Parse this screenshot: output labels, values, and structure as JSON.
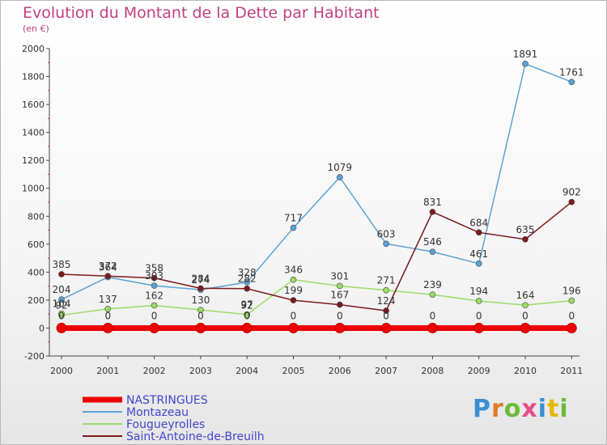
{
  "header": {
    "title": "Evolution du Montant de la Dette par Habitant",
    "subtitle": "(en €)"
  },
  "logo": {
    "text": "Proxiti"
  },
  "chart_data": {
    "type": "line",
    "title": "Evolution du Montant de la Dette par Habitant",
    "subtitle": "(en €)",
    "x": [
      "2000",
      "2001",
      "2002",
      "2003",
      "2004",
      "2005",
      "2006",
      "2007",
      "2008",
      "2009",
      "2010",
      "2011"
    ],
    "ylim": [
      -200,
      2000
    ],
    "yticks": [
      -200,
      0,
      200,
      400,
      600,
      800,
      1000,
      1200,
      1400,
      1600,
      1800,
      2000
    ],
    "grid": false,
    "legend_position": "bottom-left",
    "series": [
      {
        "name": "NASTRINGUES",
        "color": "#ee0000",
        "values": [
          0,
          0,
          0,
          0,
          0,
          0,
          0,
          0,
          0,
          0,
          0,
          0
        ],
        "labels": []
      },
      {
        "name": "Montazeau",
        "color": "#5ba3d6",
        "values": [
          204,
          364,
          303,
          274,
          328,
          717,
          1079,
          603,
          546,
          461,
          1891,
          1761
        ],
        "labels": [
          "204",
          "364",
          "303",
          "274",
          "328",
          "717",
          "1079",
          "603",
          "546",
          "461",
          "1891",
          "1761"
        ]
      },
      {
        "name": "Fougueyrolles",
        "color": "#99dd66",
        "values": [
          92,
          137,
          162,
          130,
          97,
          346,
          301,
          271,
          239,
          194,
          164,
          196
        ],
        "labels": [
          "92",
          "137",
          "162",
          "130",
          "97",
          "346",
          "301",
          "271",
          "239",
          "194",
          "164",
          "196"
        ]
      },
      {
        "name": "Saint-Antoine-de-Breuilh",
        "color": "#7a1a1a",
        "values": [
          385,
          372,
          358,
          284,
          282,
          199,
          167,
          124,
          831,
          684,
          635,
          902
        ],
        "labels": [
          "385",
          "372",
          "358",
          "284",
          "282",
          "199",
          "167",
          "124",
          "831",
          "684",
          "635",
          "902"
        ]
      },
      {
        "name": "",
        "color": "#7a1a1a",
        "values": [
          104,
          null,
          null,
          null,
          92,
          null,
          null,
          null,
          null,
          null,
          null,
          null
        ],
        "labels": [
          "104",
          "",
          "",
          "",
          "92",
          "",
          "",
          "",
          "",
          "",
          "",
          ""
        ]
      }
    ],
    "zero_labels": [
      "0",
      "0",
      "0",
      "0",
      "0",
      "0",
      "0",
      "0",
      "0",
      "0",
      "0",
      "0"
    ]
  }
}
